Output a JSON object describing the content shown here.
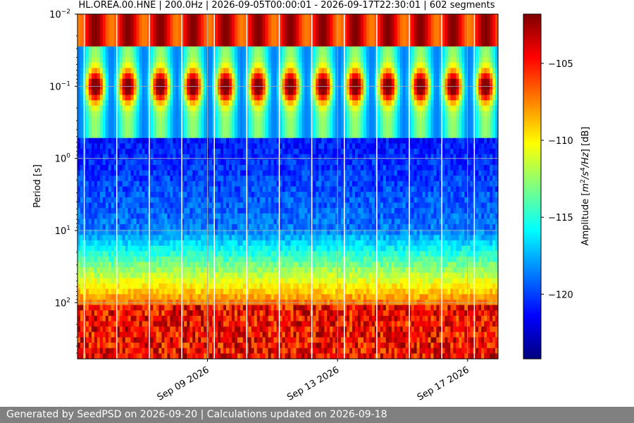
{
  "chart_data": {
    "type": "heatmap",
    "title": "HL.OREA.00.HNE | 200.0Hz | 2026-09-05T00:00:01 - 2026-09-17T22:30:01 | 602 segments",
    "xlabel": "",
    "ylabel": "Period [s]",
    "x_range": [
      "2026-09-05T00:00:01",
      "2026-09-17T22:30:01"
    ],
    "x_ticks": [
      "Sep 09 2026",
      "Sep 13 2026",
      "Sep 17 2026"
    ],
    "y_scale": "log",
    "y_inverted": true,
    "y_range": [
      0.01,
      600
    ],
    "y_ticks": [
      0.01,
      0.1,
      1,
      10,
      100
    ],
    "y_tick_labels": [
      {
        "base": "10",
        "exp": "−2"
      },
      {
        "base": "10",
        "exp": "−1"
      },
      {
        "base": "10",
        "exp": "0"
      },
      {
        "base": "10",
        "exp": "1"
      },
      {
        "base": "10",
        "exp": "2"
      }
    ],
    "grid": true,
    "colormap": "jet",
    "colorbar": {
      "label_prefix": "Amplitude [",
      "label_m": "m",
      "label_m_exp": "2",
      "label_slash1": "/",
      "label_s": "s",
      "label_s_exp": "4",
      "label_slash2": "/",
      "label_hz": "Hz",
      "label_suffix": "] [dB]",
      "range": [
        -124.2,
        -101.8
      ],
      "ticks": [
        -105,
        -110,
        -115,
        -120
      ],
      "tick_labels": [
        "−105",
        "−110",
        "−115",
        "−120"
      ]
    },
    "daily_cycle_days": 13,
    "microseism_band_period_s": 0.1,
    "minimum_band_period_s": [
      1,
      10
    ],
    "data_gap_days": [
      "2026-09-05",
      "2026-09-06",
      "2026-09-07",
      "2026-09-08",
      "2026-09-09",
      "2026-09-10",
      "2026-09-11",
      "2026-09-12",
      "2026-09-13",
      "2026-09-14",
      "2026-09-15",
      "2026-09-16",
      "2026-09-17"
    ]
  },
  "footer": {
    "text": "Generated by SeedPSD on 2026-09-20 | Calculations updated on 2026-09-18"
  }
}
